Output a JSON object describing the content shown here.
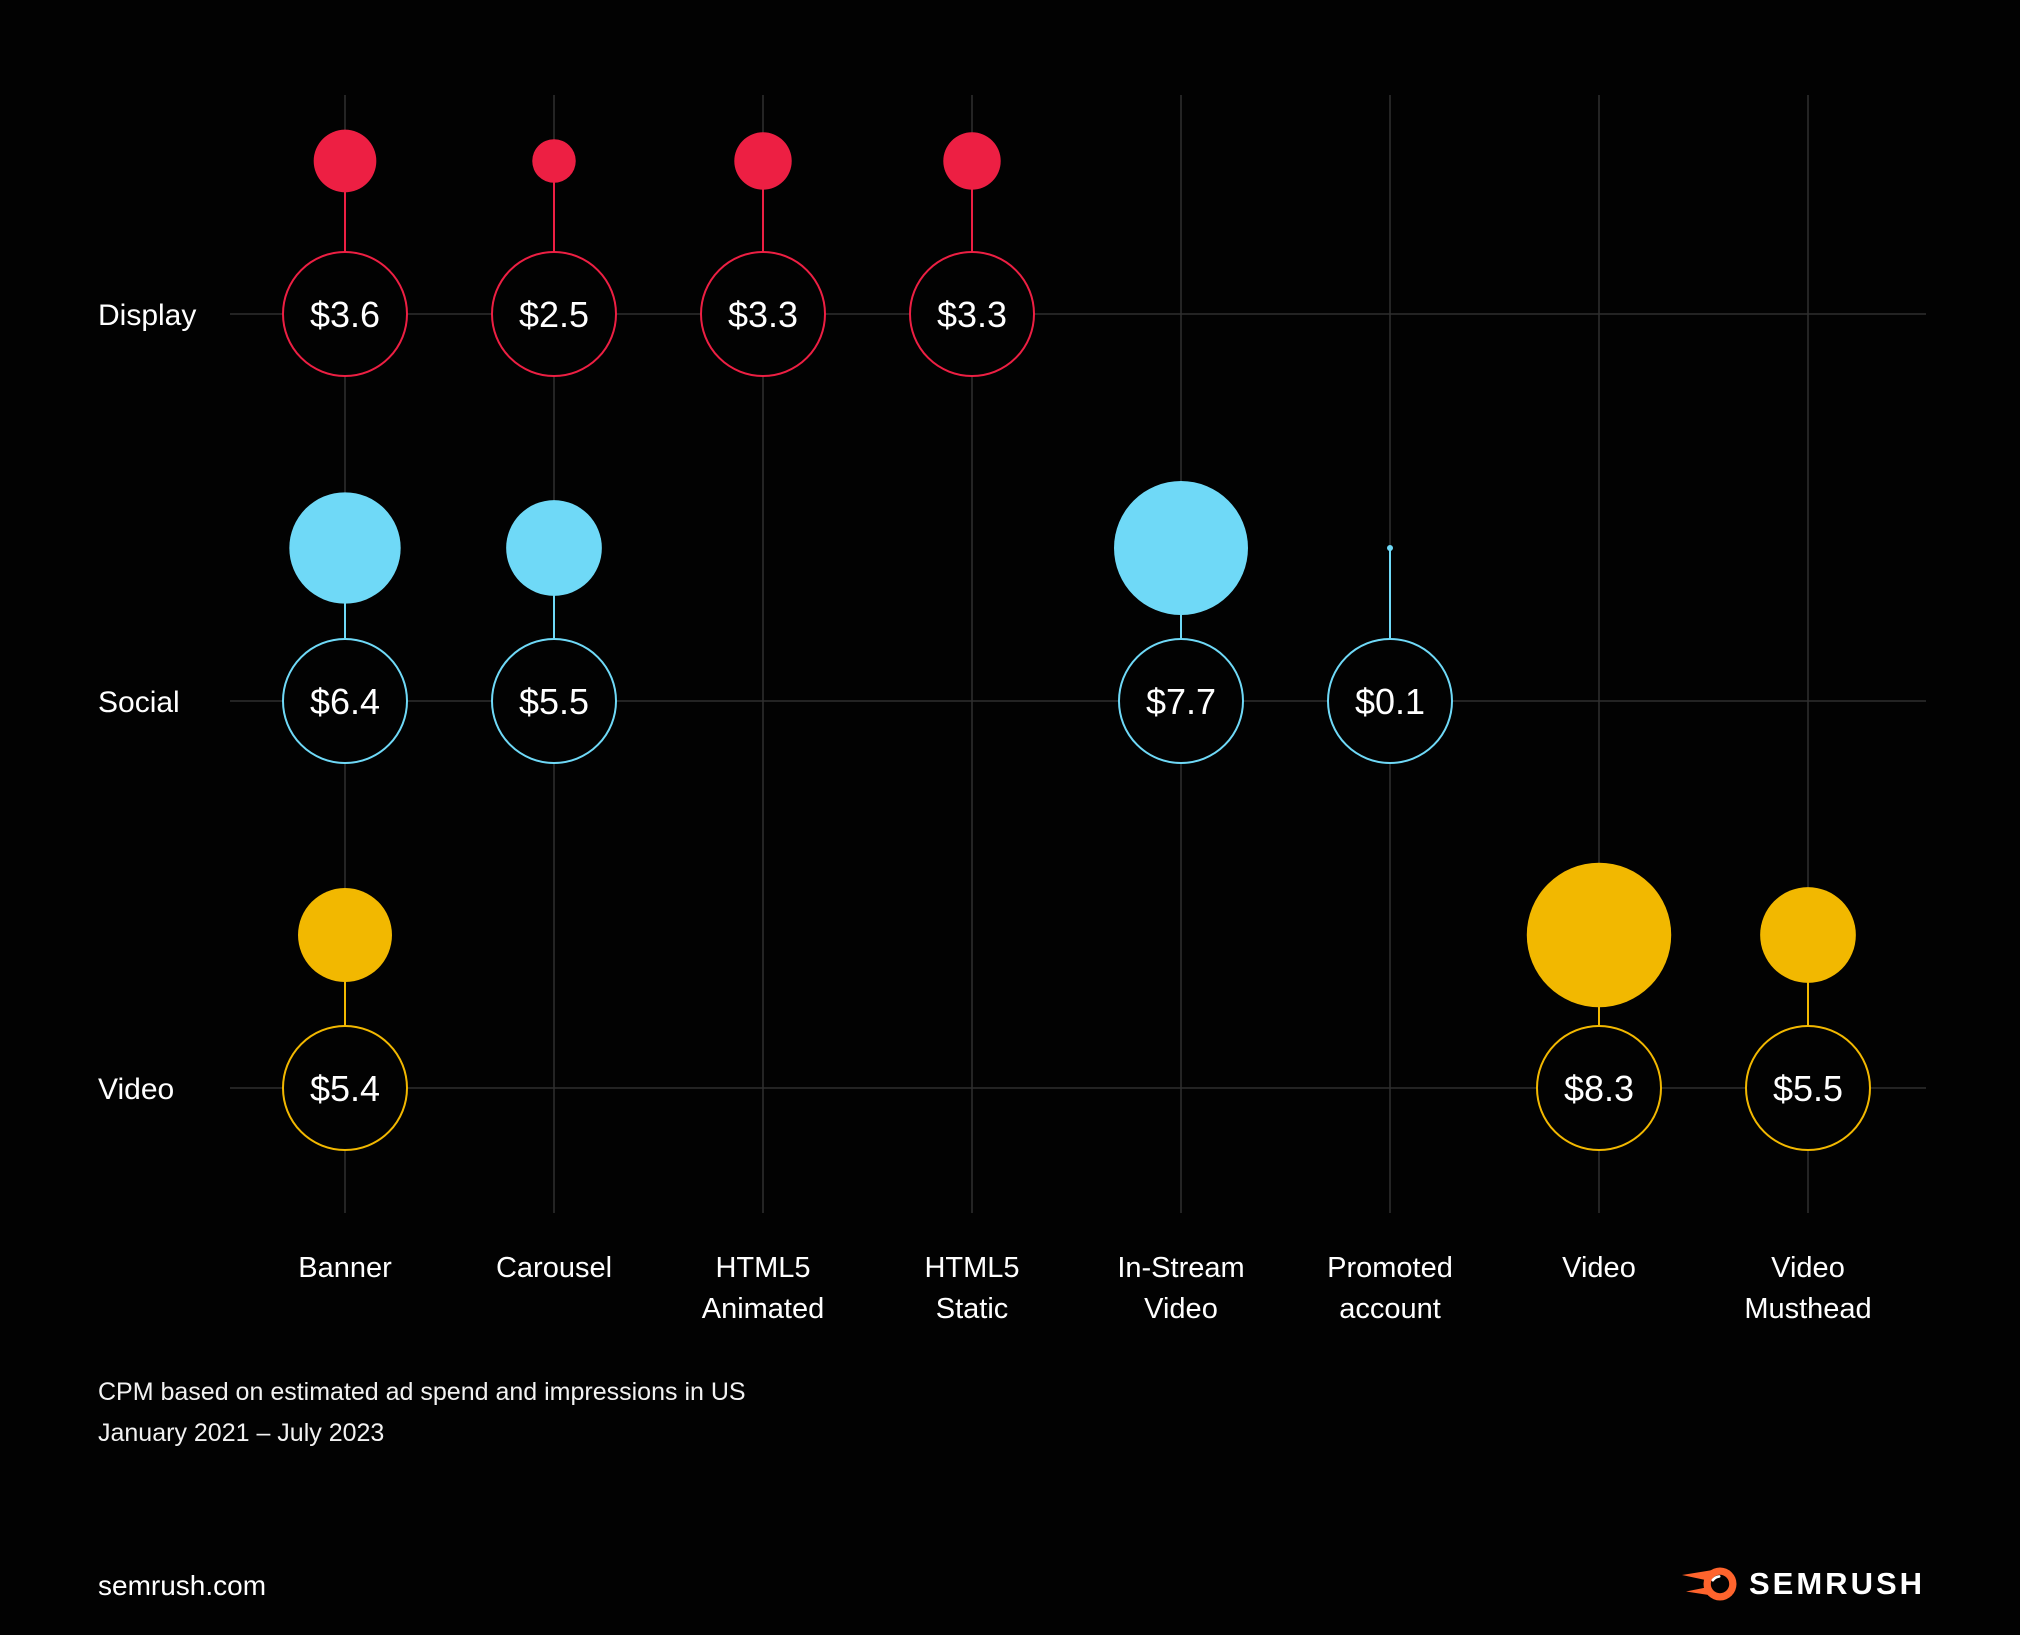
{
  "theme": {
    "background": "#020202",
    "grid_color": "#2e2e2e",
    "text_color": "#ffffff",
    "display_color": "#ED1F43",
    "social_color": "#6FD9F7",
    "video_color": "#F2B800",
    "logo_orange": "#FF642D"
  },
  "chart_data": {
    "type": "bubble",
    "description": "CPM bubble matrix by ad channel (rows) and ad format (columns); bubble area/radius scales with CPM value in USD",
    "rows": [
      "Display",
      "Social",
      "Video"
    ],
    "columns": [
      "Banner",
      "Carousel",
      "HTML5 Animated",
      "HTML5 Static",
      "In-Stream Video",
      "Promoted account",
      "Video",
      "Video Musthead"
    ],
    "value_prefix": "$",
    "series": [
      {
        "name": "Display",
        "color": "#ED1F43",
        "values": [
          3.6,
          2.5,
          3.3,
          3.3,
          null,
          null,
          null,
          null
        ]
      },
      {
        "name": "Social",
        "color": "#6FD9F7",
        "values": [
          6.4,
          5.5,
          null,
          null,
          7.7,
          0.1,
          null,
          null
        ]
      },
      {
        "name": "Video",
        "color": "#F2B800",
        "values": [
          5.4,
          null,
          null,
          null,
          null,
          null,
          8.3,
          5.5
        ]
      }
    ],
    "grid": true,
    "legend_position": "none",
    "footnote_line1": "CPM based on estimated ad spend and impressions in US",
    "footnote_line2": "January 2021 – July 2023"
  },
  "footer": {
    "site": "semrush.com",
    "logo_text": "SEMRUSH"
  }
}
